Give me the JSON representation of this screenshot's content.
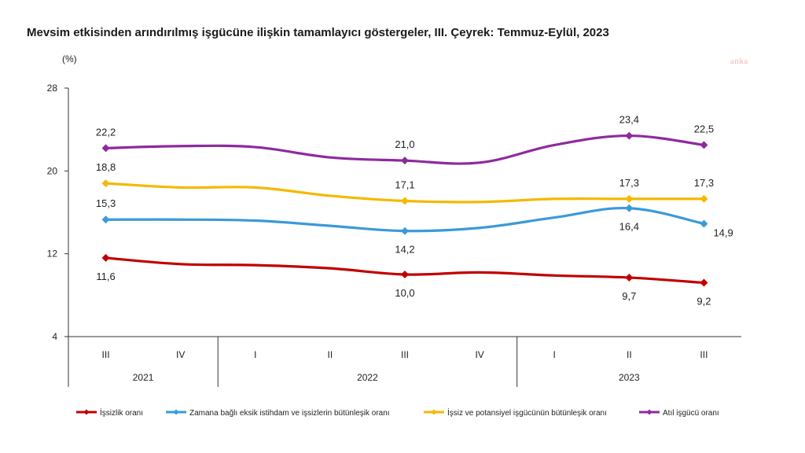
{
  "title": "Mevsim etkisinden arındırılmış işgücüne ilişkin tamamlayıcı göstergeler, III. Çeyrek: Temmuz-Eylül, 2023",
  "watermark": "anka",
  "chart_data": {
    "type": "line",
    "ylabel": "(%)",
    "ylim": [
      4,
      28
    ],
    "yticks": [
      4,
      12,
      20,
      28
    ],
    "categories": [
      "III",
      "IV",
      "I",
      "II",
      "III",
      "IV",
      "I",
      "II",
      "III"
    ],
    "groups": [
      {
        "label": "2021",
        "start": 0,
        "end": 1
      },
      {
        "label": "2022",
        "start": 2,
        "end": 5
      },
      {
        "label": "2023",
        "start": 6,
        "end": 8
      }
    ],
    "legend_position": "bottom",
    "series": [
      {
        "name": "İşsizlik oranı",
        "color": "#c00000",
        "values": [
          11.6,
          11.0,
          10.9,
          10.6,
          10.0,
          10.2,
          9.9,
          9.7,
          9.2
        ],
        "labels": [
          "11,6",
          "",
          "",
          "",
          "10,0",
          "",
          "",
          "9,7",
          "9,2"
        ],
        "label_pos": [
          "below",
          "",
          "",
          "",
          "below",
          "",
          "",
          "below",
          "below"
        ]
      },
      {
        "name": "Zamana bağlı eksik istihdam ve işsizlerin bütünleşik oranı",
        "color": "#3a9ad9",
        "values": [
          15.3,
          15.3,
          15.2,
          14.7,
          14.2,
          14.5,
          15.5,
          16.4,
          14.9
        ],
        "labels": [
          "15,3",
          "",
          "",
          "",
          "14,2",
          "",
          "",
          "16,4",
          "14,9"
        ],
        "label_pos": [
          "above",
          "",
          "",
          "",
          "below",
          "",
          "",
          "below",
          "below-right"
        ]
      },
      {
        "name": "İşsiz ve potansiyel işgücünün bütünleşik oranı",
        "color": "#f5b800",
        "values": [
          18.8,
          18.4,
          18.4,
          17.6,
          17.1,
          17.0,
          17.3,
          17.3,
          17.3
        ],
        "labels": [
          "18,8",
          "",
          "",
          "",
          "17,1",
          "",
          "",
          "17,3",
          "17,3"
        ],
        "label_pos": [
          "above",
          "",
          "",
          "",
          "above",
          "",
          "",
          "above",
          "above"
        ]
      },
      {
        "name": "Atıl işgücü oranı",
        "color": "#8e2a9e",
        "values": [
          22.2,
          22.4,
          22.3,
          21.3,
          21.0,
          20.8,
          22.5,
          23.4,
          22.5
        ],
        "labels": [
          "22,2",
          "",
          "",
          "",
          "21,0",
          "",
          "",
          "23,4",
          "22,5"
        ],
        "label_pos": [
          "above",
          "",
          "",
          "",
          "above",
          "",
          "",
          "above",
          "above"
        ]
      }
    ]
  }
}
